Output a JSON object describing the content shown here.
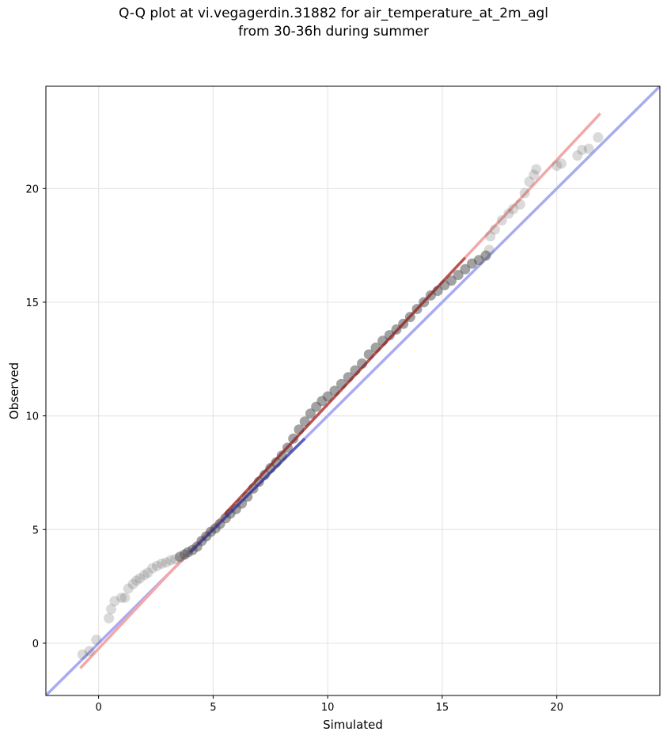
{
  "title_line1": "Q-Q plot at vi.vegagerdin.31882 for air_temperature_at_2m_agl",
  "title_line2": "from 30-36h during summer",
  "chart_data": {
    "type": "scatter",
    "title": "Q-Q plot at vi.vegagerdin.31882 for air_temperature_at_2m_agl from 30-36h during summer",
    "xlabel": "Simulated",
    "ylabel": "Observed",
    "xlim": [
      -2.3,
      24.5
    ],
    "ylim": [
      -2.3,
      24.5
    ],
    "xticks": [
      0,
      5,
      10,
      15,
      20
    ],
    "yticks": [
      0,
      5,
      10,
      15,
      20
    ],
    "grid": true,
    "colors": {
      "points": "#555555",
      "identity_line": "#aaaaf2",
      "fit_line": "#f2a8a8",
      "dense_fit": "#8b1010",
      "dense_identity": "#1e1e90"
    },
    "identity_line": {
      "x": [
        -2.3,
        24.5
      ],
      "y": [
        -2.3,
        24.5
      ]
    },
    "fit_line": {
      "x": [
        -0.8,
        21.9
      ],
      "y": [
        -1.1,
        23.3
      ]
    },
    "points": [
      {
        "x": -0.7,
        "y": -0.5
      },
      {
        "x": -0.4,
        "y": -0.35
      },
      {
        "x": -0.1,
        "y": 0.15
      },
      {
        "x": 0.45,
        "y": 1.1
      },
      {
        "x": 0.55,
        "y": 1.5
      },
      {
        "x": 0.7,
        "y": 1.85
      },
      {
        "x": 1.0,
        "y": 2.0
      },
      {
        "x": 1.15,
        "y": 2.0
      },
      {
        "x": 1.3,
        "y": 2.4
      },
      {
        "x": 1.5,
        "y": 2.6
      },
      {
        "x": 1.65,
        "y": 2.75
      },
      {
        "x": 1.8,
        "y": 2.85
      },
      {
        "x": 2.0,
        "y": 3.0
      },
      {
        "x": 2.15,
        "y": 3.1
      },
      {
        "x": 2.35,
        "y": 3.3
      },
      {
        "x": 2.55,
        "y": 3.4
      },
      {
        "x": 2.75,
        "y": 3.5
      },
      {
        "x": 2.95,
        "y": 3.55
      },
      {
        "x": 3.15,
        "y": 3.65
      },
      {
        "x": 3.35,
        "y": 3.7
      },
      {
        "x": 3.55,
        "y": 3.8
      },
      {
        "x": 3.75,
        "y": 3.9
      },
      {
        "x": 3.9,
        "y": 4.0
      },
      {
        "x": 4.1,
        "y": 4.1
      },
      {
        "x": 4.3,
        "y": 4.25
      },
      {
        "x": 4.5,
        "y": 4.5
      },
      {
        "x": 4.7,
        "y": 4.7
      },
      {
        "x": 4.9,
        "y": 4.9
      },
      {
        "x": 5.1,
        "y": 5.05
      },
      {
        "x": 5.3,
        "y": 5.25
      },
      {
        "x": 5.55,
        "y": 5.5
      },
      {
        "x": 5.75,
        "y": 5.7
      },
      {
        "x": 6.0,
        "y": 5.9
      },
      {
        "x": 6.25,
        "y": 6.15
      },
      {
        "x": 6.5,
        "y": 6.45
      },
      {
        "x": 6.75,
        "y": 6.8
      },
      {
        "x": 7.0,
        "y": 7.1
      },
      {
        "x": 7.25,
        "y": 7.4
      },
      {
        "x": 7.5,
        "y": 7.7
      },
      {
        "x": 7.75,
        "y": 7.95
      },
      {
        "x": 8.0,
        "y": 8.25
      },
      {
        "x": 8.25,
        "y": 8.6
      },
      {
        "x": 8.5,
        "y": 9.0
      },
      {
        "x": 8.75,
        "y": 9.4
      },
      {
        "x": 9.0,
        "y": 9.75
      },
      {
        "x": 9.25,
        "y": 10.1
      },
      {
        "x": 9.5,
        "y": 10.4
      },
      {
        "x": 9.75,
        "y": 10.65
      },
      {
        "x": 10.0,
        "y": 10.85
      },
      {
        "x": 10.3,
        "y": 11.1
      },
      {
        "x": 10.6,
        "y": 11.4
      },
      {
        "x": 10.9,
        "y": 11.7
      },
      {
        "x": 11.2,
        "y": 12.0
      },
      {
        "x": 11.5,
        "y": 12.3
      },
      {
        "x": 11.8,
        "y": 12.7
      },
      {
        "x": 12.1,
        "y": 13.0
      },
      {
        "x": 12.4,
        "y": 13.3
      },
      {
        "x": 12.7,
        "y": 13.55
      },
      {
        "x": 13.0,
        "y": 13.8
      },
      {
        "x": 13.3,
        "y": 14.05
      },
      {
        "x": 13.6,
        "y": 14.35
      },
      {
        "x": 13.9,
        "y": 14.7
      },
      {
        "x": 14.2,
        "y": 15.0
      },
      {
        "x": 14.5,
        "y": 15.3
      },
      {
        "x": 14.8,
        "y": 15.5
      },
      {
        "x": 15.1,
        "y": 15.75
      },
      {
        "x": 15.4,
        "y": 15.95
      },
      {
        "x": 15.7,
        "y": 16.2
      },
      {
        "x": 16.0,
        "y": 16.45
      },
      {
        "x": 16.3,
        "y": 16.7
      },
      {
        "x": 16.6,
        "y": 16.85
      },
      {
        "x": 16.9,
        "y": 17.05
      },
      {
        "x": 17.05,
        "y": 17.3
      },
      {
        "x": 17.1,
        "y": 17.9
      },
      {
        "x": 17.3,
        "y": 18.2
      },
      {
        "x": 17.6,
        "y": 18.6
      },
      {
        "x": 17.9,
        "y": 18.9
      },
      {
        "x": 18.1,
        "y": 19.1
      },
      {
        "x": 18.4,
        "y": 19.3
      },
      {
        "x": 18.6,
        "y": 19.8
      },
      {
        "x": 18.8,
        "y": 20.3
      },
      {
        "x": 19.0,
        "y": 20.6
      },
      {
        "x": 19.1,
        "y": 20.85
      },
      {
        "x": 20.0,
        "y": 21.0
      },
      {
        "x": 20.2,
        "y": 21.1
      },
      {
        "x": 20.9,
        "y": 21.45
      },
      {
        "x": 21.1,
        "y": 21.7
      },
      {
        "x": 21.4,
        "y": 21.75
      },
      {
        "x": 21.8,
        "y": 22.25
      }
    ]
  }
}
